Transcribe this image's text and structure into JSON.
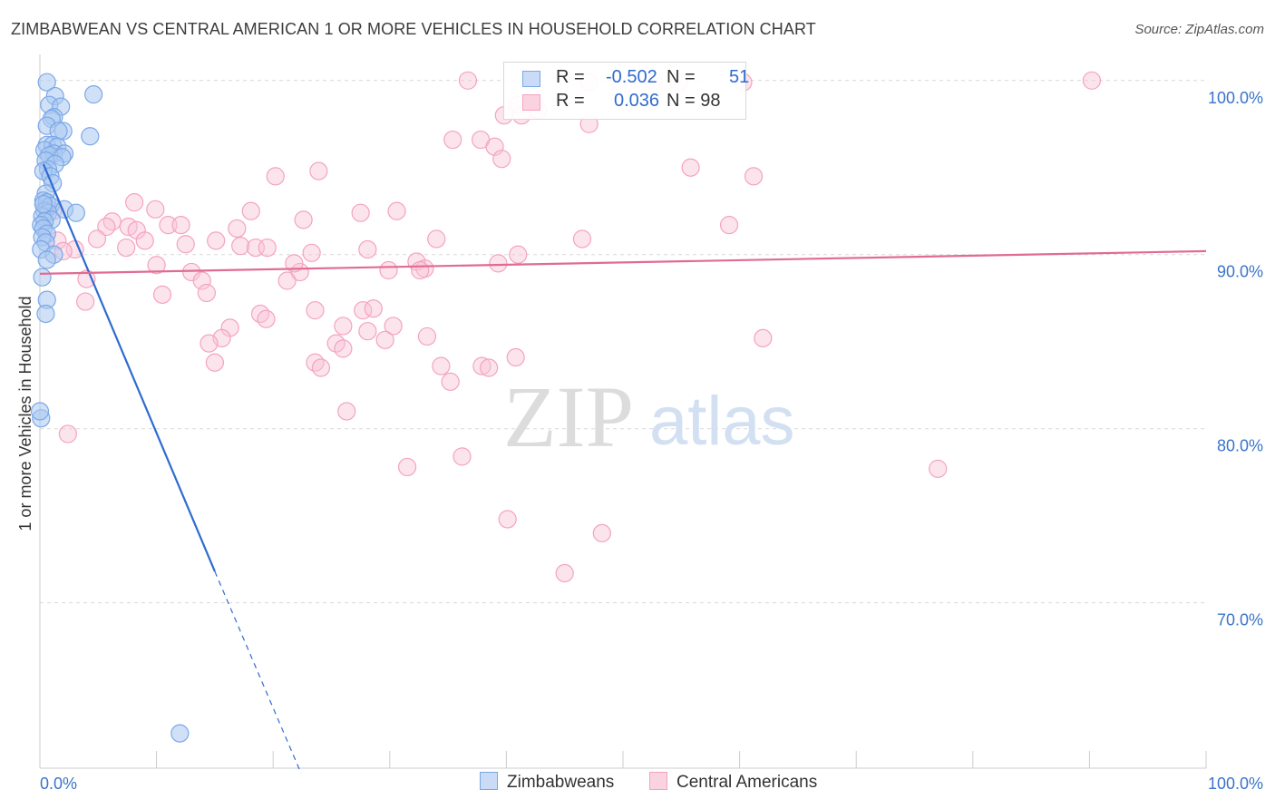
{
  "header": {
    "title": "ZIMBABWEAN VS CENTRAL AMERICAN 1 OR MORE VEHICLES IN HOUSEHOLD CORRELATION CHART",
    "source": "Source: ZipAtlas.com"
  },
  "stats_legend": {
    "rows": [
      {
        "r_label": "R =",
        "r_value": "-0.502",
        "n_label": "N =",
        "n_value": "51",
        "color": "#7aa7e8"
      },
      {
        "r_label": "R =",
        "r_value": "0.036",
        "n_label": "N = 98",
        "n_value": "",
        "color": "#f4a3bf"
      }
    ]
  },
  "watermark": {
    "part1": "ZIP",
    "part2": "atlas"
  },
  "colors": {
    "blue": "#7aa7e8",
    "blue_line": "#2f6bd1",
    "pink": "#f4a3bf",
    "pink_line": "#e06b93",
    "axis_text": "#3a74c9"
  },
  "chart_data": {
    "type": "scatter",
    "title": "ZIMBABWEAN VS CENTRAL AMERICAN 1 OR MORE VEHICLES IN HOUSEHOLD CORRELATION CHART",
    "xlabel": "",
    "ylabel": "1 or more Vehicles in Household",
    "xlim": [
      0,
      100
    ],
    "ylim": [
      60.5,
      101.5
    ],
    "x_tick_labels": [
      "0.0%",
      "100.0%"
    ],
    "y_ticks": [
      70,
      80,
      90,
      100
    ],
    "y_tick_labels": [
      "70.0%",
      "80.0%",
      "90.0%",
      "100.0%"
    ],
    "grid": true,
    "legend_position": "bottom",
    "series": [
      {
        "name": "Zimbabweans",
        "color": "#7aa7e8",
        "trend": {
          "x": [
            0.3,
            15
          ],
          "y": [
            95.2,
            71.8
          ],
          "dashed_to": {
            "x": 22.4,
            "y": 60.2
          }
        },
        "points": [
          [
            0.6,
            99.9
          ],
          [
            4.6,
            99.2
          ],
          [
            1.3,
            99.1
          ],
          [
            0.8,
            98.6
          ],
          [
            1.8,
            98.5
          ],
          [
            1.2,
            97.9
          ],
          [
            1.0,
            97.8
          ],
          [
            0.6,
            97.4
          ],
          [
            2.0,
            97.1
          ],
          [
            1.6,
            97.1
          ],
          [
            4.3,
            96.8
          ],
          [
            0.6,
            96.3
          ],
          [
            1.1,
            96.3
          ],
          [
            1.5,
            96.2
          ],
          [
            0.4,
            96.0
          ],
          [
            1.2,
            95.8
          ],
          [
            2.1,
            95.8
          ],
          [
            0.8,
            95.7
          ],
          [
            1.9,
            95.6
          ],
          [
            0.5,
            95.4
          ],
          [
            1.3,
            95.2
          ],
          [
            0.7,
            94.9
          ],
          [
            0.3,
            94.8
          ],
          [
            0.9,
            94.5
          ],
          [
            1.1,
            94.1
          ],
          [
            0.5,
            93.5
          ],
          [
            0.3,
            93.1
          ],
          [
            0.6,
            93.0
          ],
          [
            0.9,
            92.8
          ],
          [
            2.1,
            92.6
          ],
          [
            0.4,
            92.5
          ],
          [
            3.1,
            92.4
          ],
          [
            0.7,
            92.4
          ],
          [
            0.2,
            92.2
          ],
          [
            1.0,
            92.0
          ],
          [
            0.4,
            91.9
          ],
          [
            0.1,
            91.7
          ],
          [
            0.3,
            91.5
          ],
          [
            0.6,
            91.2
          ],
          [
            0.2,
            91.0
          ],
          [
            0.5,
            90.7
          ],
          [
            0.1,
            90.3
          ],
          [
            1.2,
            90.0
          ],
          [
            0.6,
            89.7
          ],
          [
            0.2,
            88.7
          ],
          [
            0.6,
            87.4
          ],
          [
            0.5,
            86.6
          ],
          [
            0.1,
            80.6
          ],
          [
            0.0,
            81.0
          ],
          [
            12.0,
            62.5
          ],
          [
            0.3,
            92.9
          ]
        ]
      },
      {
        "name": "Central Americans",
        "color": "#f4a3bf",
        "trend": {
          "x": [
            0,
            100
          ],
          "y": [
            88.9,
            90.2
          ]
        },
        "points": [
          [
            36.7,
            100.0
          ],
          [
            47.1,
            99.9
          ],
          [
            52.6,
            100.0
          ],
          [
            54.8,
            99.9
          ],
          [
            60.3,
            99.9
          ],
          [
            90.2,
            100.0
          ],
          [
            39.8,
            98.0
          ],
          [
            41.3,
            98.0
          ],
          [
            41.0,
            98.6
          ],
          [
            42.7,
            98.3
          ],
          [
            47.1,
            97.5
          ],
          [
            35.4,
            96.6
          ],
          [
            37.8,
            96.6
          ],
          [
            39.0,
            96.2
          ],
          [
            39.6,
            95.5
          ],
          [
            55.8,
            95.0
          ],
          [
            61.2,
            94.5
          ],
          [
            23.9,
            94.8
          ],
          [
            20.2,
            94.5
          ],
          [
            8.1,
            93.0
          ],
          [
            9.9,
            92.6
          ],
          [
            18.1,
            92.5
          ],
          [
            22.6,
            92.0
          ],
          [
            27.5,
            92.4
          ],
          [
            30.6,
            92.5
          ],
          [
            6.2,
            91.9
          ],
          [
            7.6,
            91.6
          ],
          [
            5.7,
            91.6
          ],
          [
            11.0,
            91.7
          ],
          [
            12.1,
            91.7
          ],
          [
            8.3,
            91.4
          ],
          [
            16.9,
            91.5
          ],
          [
            15.1,
            90.8
          ],
          [
            4.9,
            90.9
          ],
          [
            9.0,
            90.8
          ],
          [
            12.5,
            90.6
          ],
          [
            17.2,
            90.5
          ],
          [
            18.5,
            90.4
          ],
          [
            19.5,
            90.4
          ],
          [
            23.3,
            90.1
          ],
          [
            28.1,
            90.3
          ],
          [
            34.0,
            90.9
          ],
          [
            46.5,
            90.9
          ],
          [
            59.1,
            91.7
          ],
          [
            3.0,
            90.3
          ],
          [
            7.4,
            90.4
          ],
          [
            10.0,
            89.4
          ],
          [
            13.0,
            89.0
          ],
          [
            13.9,
            88.5
          ],
          [
            21.2,
            88.5
          ],
          [
            22.3,
            89.0
          ],
          [
            21.8,
            89.5
          ],
          [
            29.9,
            89.1
          ],
          [
            32.3,
            89.6
          ],
          [
            33.0,
            89.2
          ],
          [
            32.6,
            89.1
          ],
          [
            39.3,
            89.5
          ],
          [
            41.0,
            90.0
          ],
          [
            4.0,
            88.6
          ],
          [
            10.5,
            87.7
          ],
          [
            14.3,
            87.8
          ],
          [
            3.9,
            87.3
          ],
          [
            18.9,
            86.6
          ],
          [
            19.4,
            86.3
          ],
          [
            23.6,
            86.8
          ],
          [
            27.7,
            86.8
          ],
          [
            28.6,
            86.9
          ],
          [
            26.0,
            85.9
          ],
          [
            28.1,
            85.6
          ],
          [
            30.3,
            85.9
          ],
          [
            16.3,
            85.8
          ],
          [
            15.6,
            85.2
          ],
          [
            14.5,
            84.9
          ],
          [
            25.4,
            84.9
          ],
          [
            26.0,
            84.6
          ],
          [
            29.6,
            85.1
          ],
          [
            33.2,
            85.3
          ],
          [
            62.0,
            85.2
          ],
          [
            15.0,
            83.8
          ],
          [
            23.6,
            83.8
          ],
          [
            24.1,
            83.5
          ],
          [
            34.4,
            83.6
          ],
          [
            35.2,
            82.7
          ],
          [
            37.9,
            83.6
          ],
          [
            38.5,
            83.5
          ],
          [
            40.8,
            84.1
          ],
          [
            26.3,
            81.0
          ],
          [
            2.4,
            79.7
          ],
          [
            36.2,
            78.4
          ],
          [
            31.5,
            77.8
          ],
          [
            77.0,
            77.7
          ],
          [
            40.1,
            74.8
          ],
          [
            48.2,
            74.0
          ],
          [
            45.0,
            71.7
          ],
          [
            1.5,
            90.8
          ],
          [
            0.6,
            92.7
          ],
          [
            1.1,
            92.5
          ],
          [
            2.0,
            90.2
          ]
        ]
      }
    ]
  }
}
